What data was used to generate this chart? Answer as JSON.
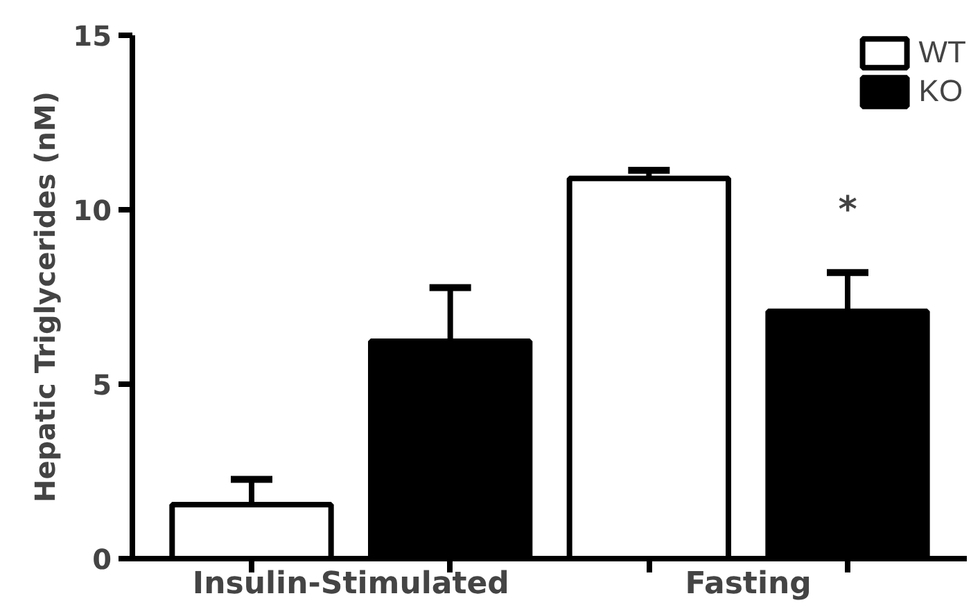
{
  "chart_data": {
    "type": "bar",
    "ylabel": "Hepatic Triglycerides (nM)",
    "categories": [
      "Insulin-Stimulated",
      "Fasting"
    ],
    "series": [
      {
        "name": "WT",
        "color": "#ffffff",
        "values": [
          1.55,
          10.9
        ],
        "errors": [
          [
            1.55,
            2.27
          ],
          [
            10.9,
            11.13
          ]
        ]
      },
      {
        "name": "KO",
        "color": "#000000",
        "values": [
          6.23,
          7.09
        ],
        "errors": [
          [
            6.23,
            7.77
          ],
          [
            7.09,
            8.2
          ]
        ]
      }
    ],
    "ylim": [
      0,
      15
    ],
    "yticks": [
      0,
      5,
      10,
      15
    ],
    "grid": false,
    "legend": "top right",
    "annotations": [
      "*"
    ]
  }
}
